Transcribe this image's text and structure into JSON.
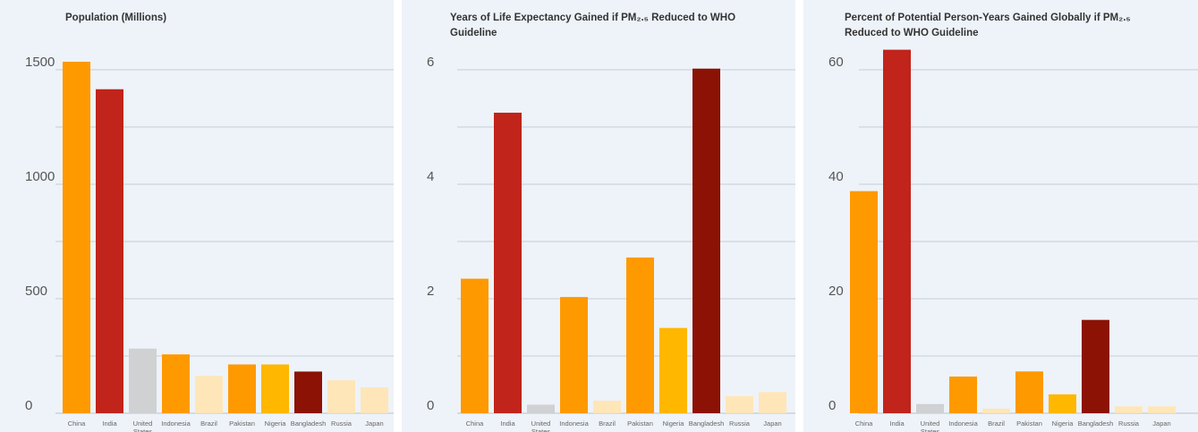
{
  "chart_data": [
    {
      "type": "bar",
      "title": "Population (Millions)",
      "categories": [
        "China",
        "India",
        "United States",
        "Indonesia",
        "Brazil",
        "Pakistan",
        "Nigeria",
        "Bangladesh",
        "Russia",
        "Japan"
      ],
      "values": [
        1535,
        1415,
        282,
        257,
        163,
        213,
        213,
        182,
        144,
        113
      ],
      "colors": [
        "#ff9900",
        "#c1241a",
        "#cfd1d2",
        "#ff9900",
        "#ffe6b8",
        "#ff9900",
        "#ffb700",
        "#8b1205",
        "#ffe6b8",
        "#ffe6b8"
      ],
      "yticks": [
        0,
        500,
        1000,
        1500
      ],
      "ylim": [
        0,
        1500
      ],
      "grid": true
    },
    {
      "type": "bar",
      "title": "Years of Life Expectancy Gained if PM₂.₅ Reduced to WHO Guideline",
      "categories": [
        "China",
        "India",
        "United States",
        "Indonesia",
        "Brazil",
        "Pakistan",
        "Nigeria",
        "Bangladesh",
        "Russia",
        "Japan"
      ],
      "values": [
        2.35,
        5.25,
        0.15,
        2.03,
        0.22,
        2.72,
        1.49,
        6.02,
        0.3,
        0.37
      ],
      "colors": [
        "#ff9900",
        "#c1241a",
        "#cfd1d2",
        "#ff9900",
        "#ffe6b8",
        "#ff9900",
        "#ffb700",
        "#8b1205",
        "#ffe6b8",
        "#ffe6b8"
      ],
      "yticks": [
        0,
        2,
        4,
        6
      ],
      "ylim": [
        0,
        6
      ],
      "grid": true
    },
    {
      "type": "bar",
      "title": "Percent of Potential Person-Years Gained Globally if PM₂.₅ Reduced  to WHO Guideline",
      "categories": [
        "China",
        "India",
        "United States",
        "Indonesia",
        "Brazil",
        "Pakistan",
        "Nigeria",
        "Bangladesh",
        "Russia",
        "Japan"
      ],
      "values": [
        38.8,
        63.5,
        1.6,
        6.4,
        0.8,
        7.3,
        3.3,
        16.3,
        1.2,
        1.2
      ],
      "colors": [
        "#ff9900",
        "#c1241a",
        "#cfd1d2",
        "#ff9900",
        "#ffe6b8",
        "#ff9900",
        "#ffb700",
        "#8b1205",
        "#ffe6b8",
        "#ffe6b8"
      ],
      "yticks": [
        0,
        20,
        40,
        60
      ],
      "ylim": [
        0,
        60
      ],
      "grid": true
    }
  ]
}
